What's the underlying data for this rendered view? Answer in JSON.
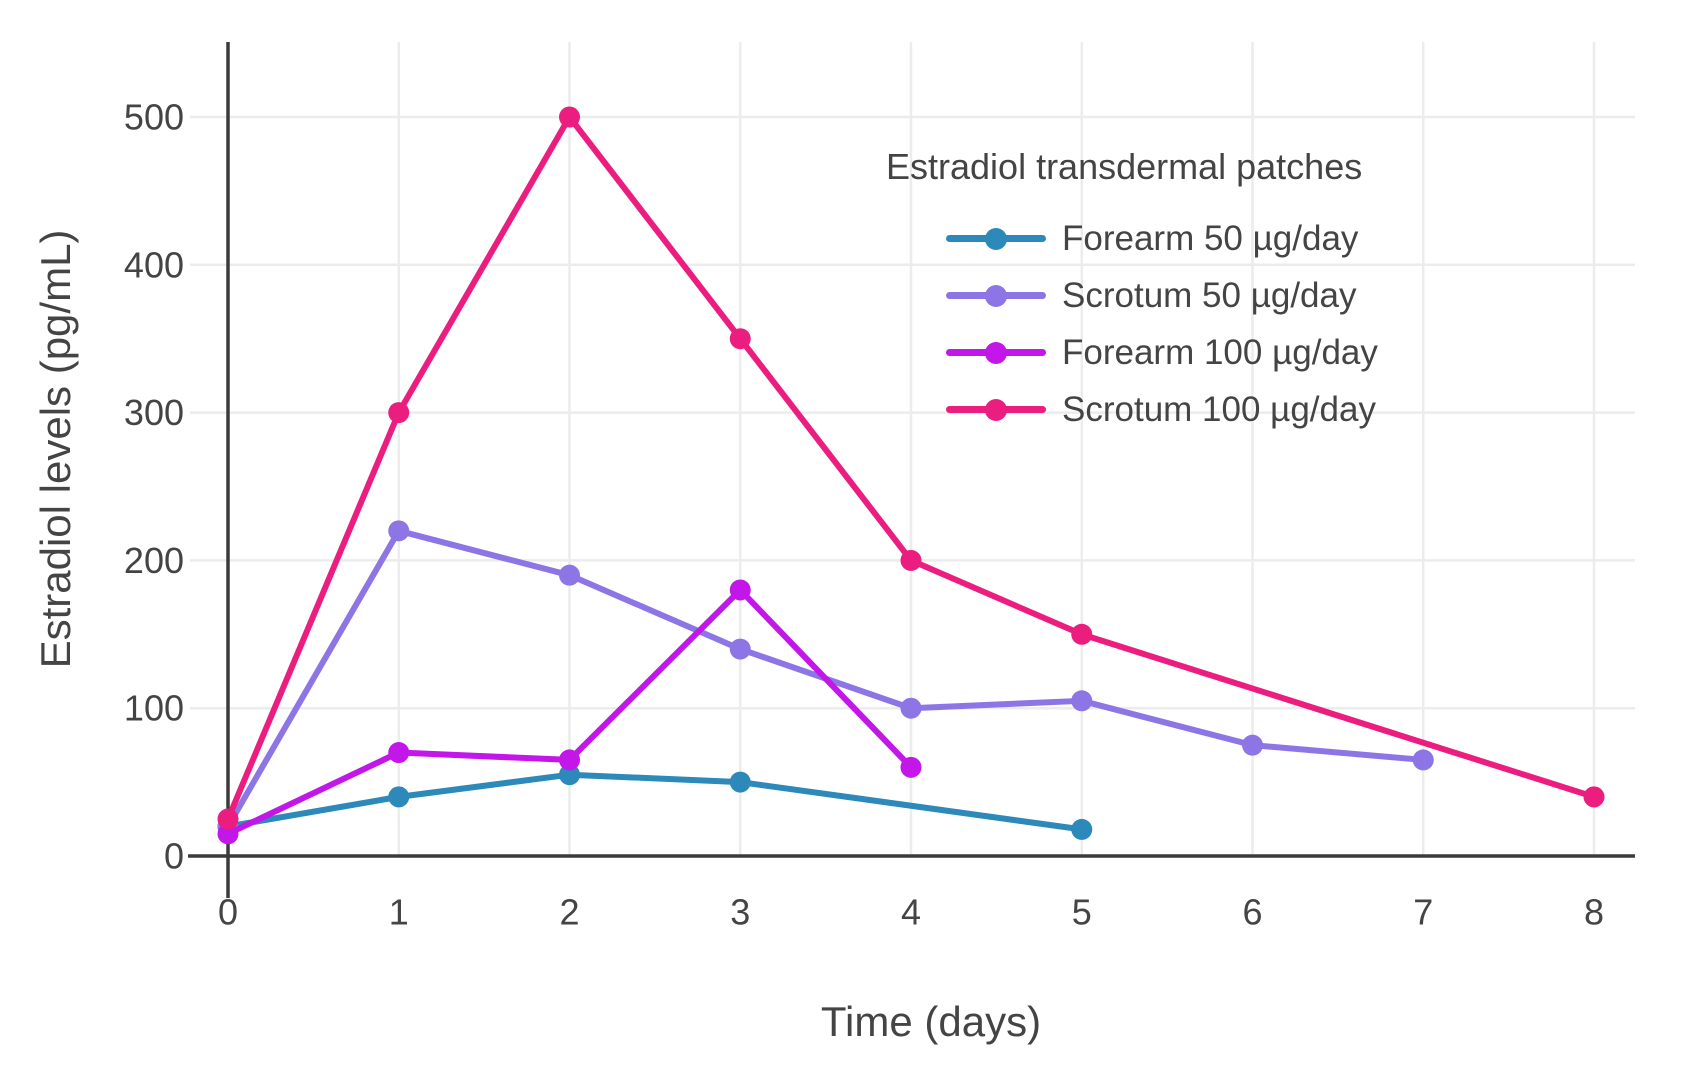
{
  "chart_data": {
    "type": "line",
    "legend_title": "Estradiol transdermal patches",
    "xlabel": "Time (days)",
    "ylabel": "Estradiol levels (pg/mL)",
    "xticks": [
      0,
      1,
      2,
      3,
      4,
      5,
      6,
      7,
      8
    ],
    "yticks": [
      0,
      100,
      200,
      300,
      400,
      500
    ],
    "xlim": [
      0,
      8.25
    ],
    "ylim": [
      0,
      550
    ],
    "grid": true,
    "legend_position": "top-right-inside",
    "series": [
      {
        "name": "Forearm 50 µg/day",
        "color": "#2d89ba",
        "x": [
          0,
          1,
          2,
          3,
          5
        ],
        "y": [
          20,
          40,
          55,
          50,
          18
        ]
      },
      {
        "name": "Scrotum 50 µg/day",
        "color": "#8d75e6",
        "x": [
          0,
          1,
          2,
          3,
          4,
          5,
          6,
          7
        ],
        "y": [
          20,
          220,
          190,
          140,
          100,
          105,
          75,
          65
        ]
      },
      {
        "name": "Forearm 100 µg/day",
        "color": "#c316e8",
        "x": [
          0,
          1,
          2,
          3,
          4
        ],
        "y": [
          15,
          70,
          65,
          180,
          60
        ]
      },
      {
        "name": "Scrotum 100 µg/day",
        "color": "#eb1e7f",
        "x": [
          0,
          1,
          2,
          3,
          4,
          5,
          8
        ],
        "y": [
          25,
          300,
          500,
          350,
          200,
          150,
          40
        ]
      }
    ],
    "style": {
      "axis_color": "#3b3b3b",
      "grid_color": "#ececec",
      "text_color": "#444444",
      "background": "#ffffff"
    }
  }
}
